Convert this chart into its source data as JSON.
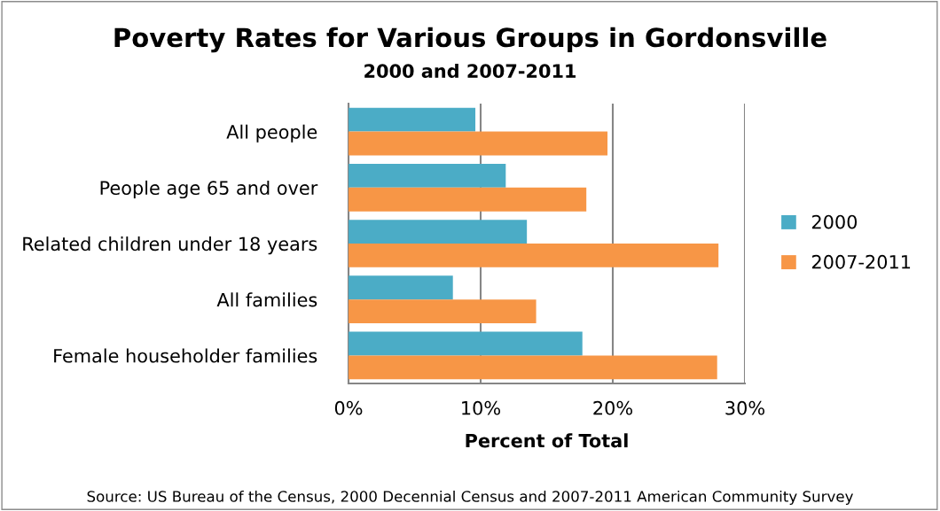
{
  "chart_data": {
    "type": "bar",
    "orientation": "horizontal",
    "title": "Poverty Rates for Various Groups in Gordonsville",
    "subtitle": "2000 and 2007-2011",
    "xlabel": "Percent of Total",
    "categories": [
      "All people",
      "People age 65 and over",
      "Related children under 18 years",
      "All families",
      "Female householder families"
    ],
    "series": [
      {
        "name": "2000",
        "color": "#4bacc6",
        "values": [
          9.6,
          11.9,
          13.5,
          7.9,
          17.7
        ]
      },
      {
        "name": "2007-2011",
        "color": "#f79646",
        "values": [
          19.6,
          18.0,
          28.0,
          14.2,
          27.9
        ]
      }
    ],
    "xlim": [
      0,
      30
    ],
    "xticks": [
      {
        "value": 0,
        "label": "0%"
      },
      {
        "value": 10,
        "label": "10%"
      },
      {
        "value": 20,
        "label": "20%"
      },
      {
        "value": 30,
        "label": "30%"
      }
    ],
    "grid": "x",
    "legend": "right",
    "annotations": [
      "Source: US Bureau of the Census, 2000 Decennial Census and 2007-2011 American Community Survey"
    ]
  }
}
